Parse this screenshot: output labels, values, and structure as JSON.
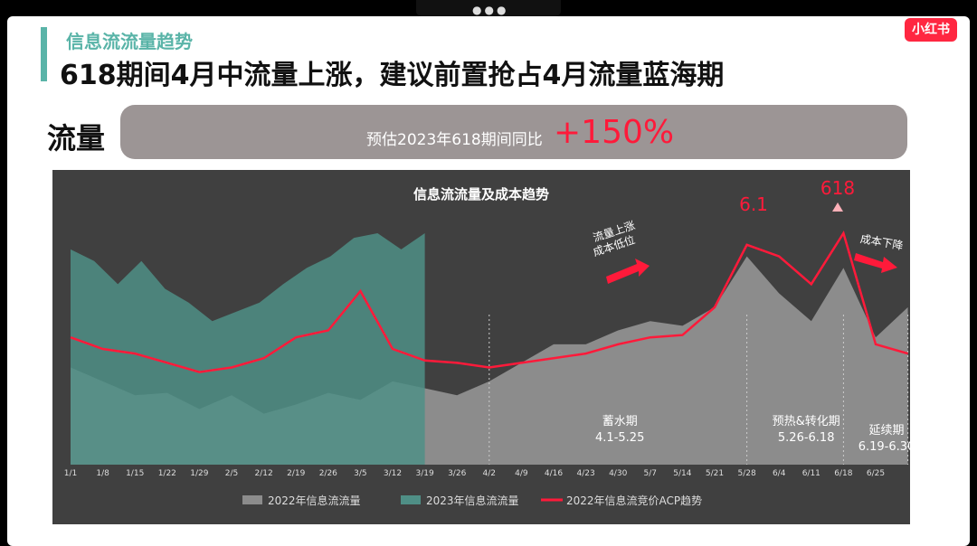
{
  "header": {
    "subtitle": "信息流流量趋势",
    "title": "618期间4月中流量上涨，建议前置抢占4月流量蓝海期",
    "logo_text": "小红书"
  },
  "summary": {
    "label": "流量",
    "text": "预估2023年618期间同比",
    "value": "+150%"
  },
  "colors": {
    "accent": "#5ab4a8",
    "red": "#ff1a3a",
    "panel": "#404040"
  },
  "chart_data": {
    "type": "area",
    "title": "信息流流量及成本趋势",
    "x_ticks": [
      "1/1",
      "1/8",
      "1/15",
      "1/22",
      "1/29",
      "2/5",
      "2/12",
      "2/19",
      "2/26",
      "3/5",
      "3/12",
      "3/19",
      "3/26",
      "4/2",
      "4/9",
      "4/16",
      "4/23",
      "4/30",
      "5/7",
      "5/14",
      "5/21",
      "5/28",
      "6/4",
      "6/11",
      "6/18",
      "6/25"
    ],
    "series": [
      {
        "name": "2022年信息流流量",
        "color": "#8c8c8c",
        "x_start": "1/1",
        "x_end": "7/2",
        "values": [
          0.42,
          0.36,
          0.3,
          0.31,
          0.24,
          0.3,
          0.22,
          0.26,
          0.31,
          0.28,
          0.36,
          0.33,
          0.3,
          0.36,
          0.44,
          0.52,
          0.52,
          0.58,
          0.62,
          0.6,
          0.68,
          0.9,
          0.74,
          0.62,
          0.85,
          0.55,
          0.68
        ]
      },
      {
        "name": "2023年信息流流量",
        "color": "#4f8f86",
        "x_start": "1/1",
        "x_end": "3/18",
        "values": [
          0.93,
          0.88,
          0.78,
          0.88,
          0.76,
          0.7,
          0.62,
          0.66,
          0.7,
          0.78,
          0.85,
          0.9,
          0.98,
          1.0,
          0.93,
          1.0
        ]
      },
      {
        "name": "2022年信息流竞价ACP趋势",
        "color": "#ff1a3a",
        "x_start": "1/1",
        "x_end": "7/2",
        "values": [
          0.55,
          0.5,
          0.48,
          0.44,
          0.4,
          0.42,
          0.46,
          0.55,
          0.58,
          0.75,
          0.5,
          0.45,
          0.44,
          0.42,
          0.44,
          0.46,
          0.48,
          0.52,
          0.55,
          0.56,
          0.68,
          0.95,
          0.9,
          0.78,
          1.0,
          0.52,
          0.48
        ]
      }
    ],
    "phases": [
      {
        "name": "蓄水期",
        "range": "4.1-5.25"
      },
      {
        "name": "预热&转化期",
        "range": "5.26-6.18"
      },
      {
        "name": "延续期",
        "range": "6.19-6.30"
      }
    ],
    "annotations": [
      {
        "text": "6.1"
      },
      {
        "text": "618"
      },
      {
        "text": "流量上涨\n成本低位"
      },
      {
        "text": "成本下降"
      }
    ],
    "legend_position": "bottom"
  }
}
